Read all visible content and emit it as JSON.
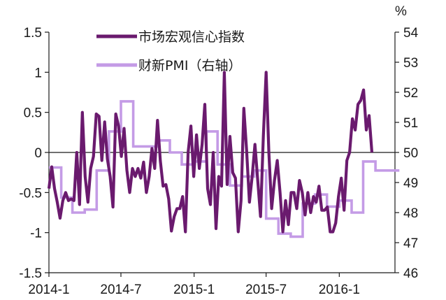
{
  "chart_data": {
    "type": "line",
    "unit_right": "%",
    "x_ticks": [
      "2014-1",
      "2014-7",
      "2015-1",
      "2015-7",
      "2016-1"
    ],
    "y_left": {
      "ylim": [
        -1.5,
        1.5
      ],
      "ticks": [
        "1.5",
        "1",
        "0.5",
        "0",
        "-0.5",
        "-1",
        "-1.5"
      ]
    },
    "y_right": {
      "ylim": [
        46,
        54
      ],
      "ticks": [
        "54",
        "53",
        "52",
        "51",
        "50",
        "49",
        "48",
        "47",
        "46"
      ]
    },
    "series": [
      {
        "name": "市场宏观信心指数",
        "axis": "left",
        "color": "#6a1a6e",
        "x_start": "2014-01-01",
        "step_days": 7,
        "values": [
          -0.45,
          -0.18,
          -0.45,
          -0.62,
          -0.82,
          -0.6,
          -0.5,
          -0.6,
          -0.58,
          -0.6,
          0,
          -0.65,
          0.5,
          -0.3,
          -0.62,
          -0.2,
          -0.05,
          0.48,
          0.45,
          -0.1,
          0.38,
          -0.08,
          -0.3,
          -0.68,
          0.48,
          0.33,
          -0.05,
          0.3,
          -0.22,
          -0.5,
          -0.2,
          -0.3,
          -0.2,
          -0.32,
          -0.12,
          -0.5,
          -0.3,
          0.05,
          -0.2,
          0.4,
          -0.1,
          -0.42,
          -0.4,
          -0.58,
          -0.98,
          -0.8,
          -0.7,
          -0.7,
          -0.55,
          -0.99,
          0,
          0.33,
          -0.3,
          0.22,
          -0.2,
          0.1,
          0.6,
          -0.45,
          -0.65,
          0,
          -0.95,
          -0.3,
          -0.42,
          1.0,
          -0.4,
          0.2,
          -0.25,
          -0.32,
          -0.99,
          -0.6,
          0.55,
          0.02,
          -0.62,
          -0.3,
          0.1,
          -0.35,
          -0.8,
          0.2,
          1.0,
          0.0,
          -0.7,
          -0.35,
          -0.1,
          -0.5,
          -0.99,
          -0.6,
          -0.9,
          -0.5,
          -0.5,
          -0.7,
          -0.35,
          -0.5,
          -0.78,
          -0.5,
          -0.75,
          -0.55,
          -0.62,
          -0.42,
          -0.72,
          -0.72,
          -0.68,
          -0.99,
          -0.99,
          -0.88,
          -0.55,
          -0.32,
          -0.72,
          -0.1,
          0.0,
          0.42,
          0.28,
          0.6,
          0.65,
          0.78,
          0.28,
          0.46,
          0.0
        ]
      },
      {
        "name": "财新PMI（右轴）",
        "axis": "right",
        "color": "#c49be6",
        "months": [
          "2014-01",
          "2014-02",
          "2014-03",
          "2014-04",
          "2014-05",
          "2014-06",
          "2014-07",
          "2014-08",
          "2014-09",
          "2014-10",
          "2014-11",
          "2014-12",
          "2015-01",
          "2015-02",
          "2015-03",
          "2015-04",
          "2015-05",
          "2015-06",
          "2015-07",
          "2015-08",
          "2015-09",
          "2015-10",
          "2015-11",
          "2015-12",
          "2016-01",
          "2016-02",
          "2016-03",
          "2016-04",
          "2016-05"
        ],
        "values": [
          49.5,
          48.5,
          48.0,
          48.1,
          49.4,
          50.7,
          51.7,
          50.2,
          50.2,
          50.4,
          50.0,
          49.6,
          49.7,
          50.7,
          49.6,
          48.9,
          49.2,
          49.4,
          47.8,
          47.3,
          47.2,
          48.3,
          48.6,
          48.2,
          48.4,
          48.0,
          49.7,
          49.4,
          49.4
        ]
      }
    ]
  }
}
